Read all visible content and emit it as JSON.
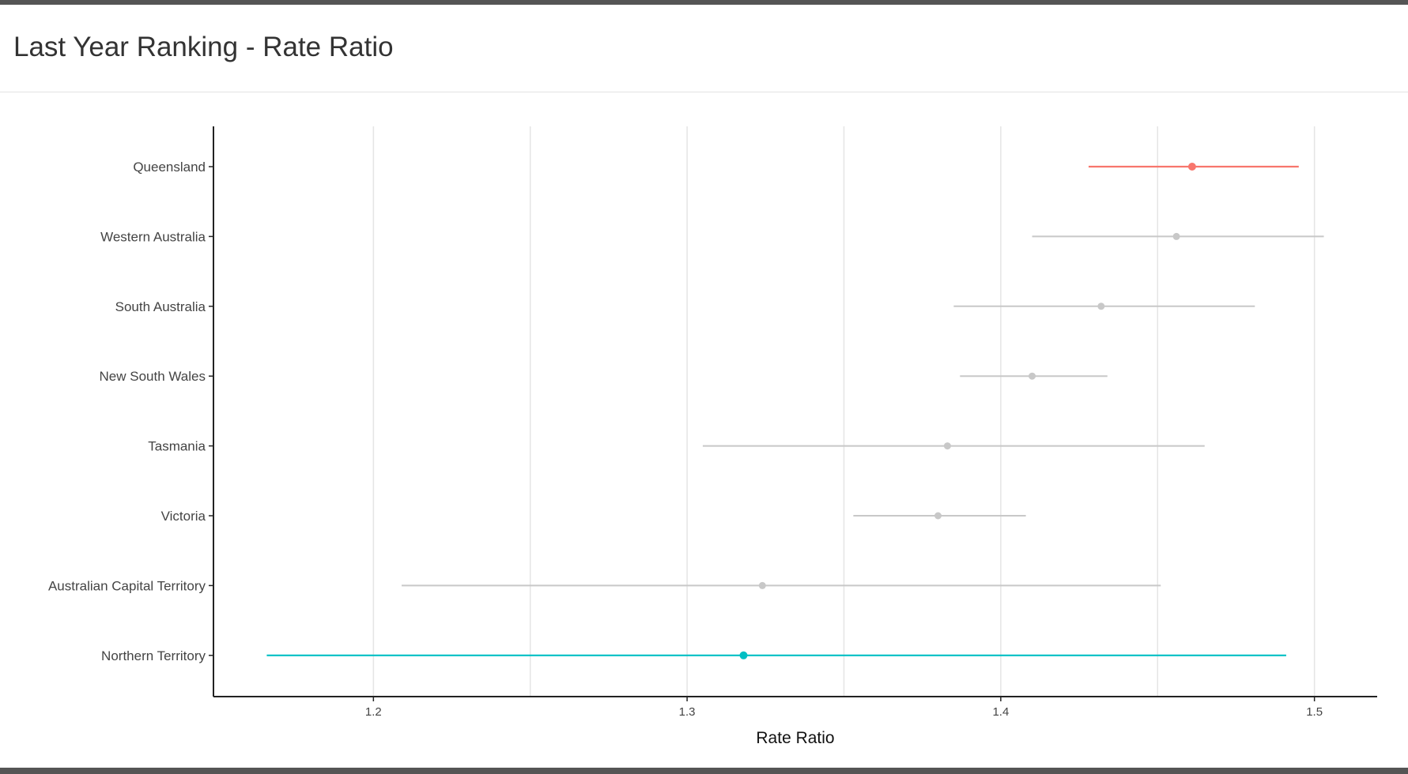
{
  "panel": {
    "title": "Last Year Ranking - Rate Ratio"
  },
  "colors": {
    "highlight_top": "#f8766d",
    "highlight_bottom": "#00bfc4",
    "muted": "#c8c8c8",
    "grid": "#e5e5e5",
    "axis": "#222222",
    "text": "#444444"
  },
  "chart_data": {
    "type": "scatter",
    "subtype": "forest-plot",
    "title": "",
    "xlabel": "Rate Ratio",
    "ylabel": "",
    "xlim": [
      1.149,
      1.52
    ],
    "x_ticks": [
      1.2,
      1.3,
      1.4,
      1.5
    ],
    "x_tick_labels": [
      "1.2",
      "1.3",
      "1.4",
      "1.5"
    ],
    "grid": "vertical major and minor",
    "legend": "none",
    "series": [
      {
        "category": "Queensland",
        "value": 1.461,
        "lower": 1.428,
        "upper": 1.495,
        "highlight": "top"
      },
      {
        "category": "Western Australia",
        "value": 1.456,
        "lower": 1.41,
        "upper": 1.503,
        "highlight": "none"
      },
      {
        "category": "South Australia",
        "value": 1.432,
        "lower": 1.385,
        "upper": 1.481,
        "highlight": "none"
      },
      {
        "category": "New South Wales",
        "value": 1.41,
        "lower": 1.387,
        "upper": 1.434,
        "highlight": "none"
      },
      {
        "category": "Tasmania",
        "value": 1.383,
        "lower": 1.305,
        "upper": 1.465,
        "highlight": "none"
      },
      {
        "category": "Victoria",
        "value": 1.38,
        "lower": 1.353,
        "upper": 1.408,
        "highlight": "none"
      },
      {
        "category": "Australian Capital Territory",
        "value": 1.324,
        "lower": 1.209,
        "upper": 1.451,
        "highlight": "none"
      },
      {
        "category": "Northern Territory",
        "value": 1.318,
        "lower": 1.166,
        "upper": 1.491,
        "highlight": "bottom"
      }
    ]
  }
}
